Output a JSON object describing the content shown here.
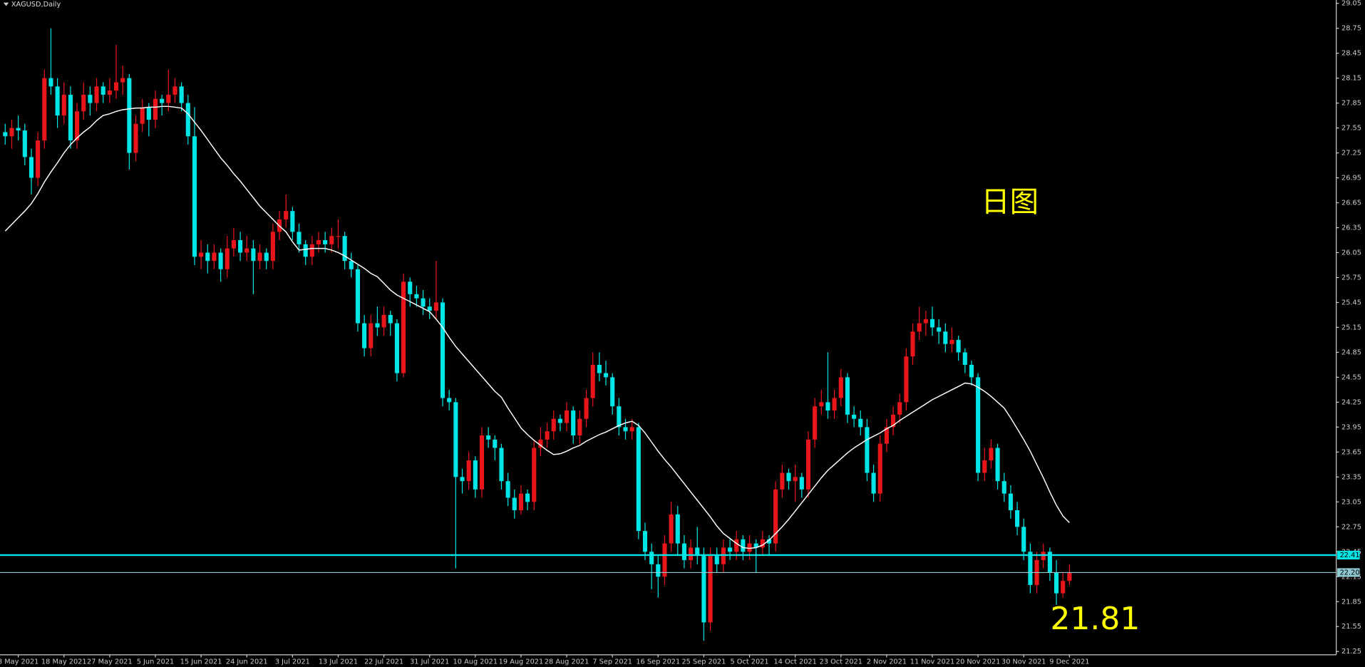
{
  "chart_data": {
    "type": "candlestick",
    "title": "XAGUSD,Daily",
    "up_color": "#e8161b",
    "down_color": "#00e5e5",
    "grid": false,
    "ylim": [
      21.21,
      29.09
    ],
    "yticks": [
      29.05,
      28.75,
      28.45,
      28.15,
      27.85,
      27.55,
      27.25,
      26.95,
      26.65,
      26.35,
      26.05,
      25.75,
      25.45,
      25.15,
      24.85,
      24.55,
      24.25,
      23.95,
      23.65,
      23.35,
      23.05,
      22.75,
      22.45,
      22.15,
      21.85,
      21.55,
      21.25
    ],
    "categories": [
      null,
      null,
      "8 May 2021",
      null,
      null,
      null,
      null,
      null,
      null,
      "18 May 2021",
      null,
      null,
      null,
      null,
      null,
      null,
      "27 May 2021",
      null,
      null,
      null,
      null,
      null,
      null,
      "5 Jun 2021",
      null,
      null,
      null,
      null,
      null,
      null,
      "15 Jun 2021",
      null,
      null,
      null,
      null,
      null,
      null,
      "24 Jun 2021",
      null,
      null,
      null,
      null,
      null,
      null,
      "3 Jul 2021",
      null,
      null,
      null,
      null,
      null,
      null,
      "13 Jul 2021",
      null,
      null,
      null,
      null,
      null,
      null,
      "22 Jul 2021",
      null,
      null,
      null,
      null,
      null,
      null,
      "31 Jul 2021",
      null,
      null,
      null,
      null,
      null,
      null,
      "10 Aug 2021",
      null,
      null,
      null,
      null,
      null,
      null,
      "19 Aug 2021",
      null,
      null,
      null,
      null,
      null,
      null,
      "28 Aug 2021",
      null,
      null,
      null,
      null,
      null,
      null,
      "7 Sep 2021",
      null,
      null,
      null,
      null,
      null,
      null,
      "16 Sep 2021",
      null,
      null,
      null,
      null,
      null,
      null,
      "25 Sep 2021",
      null,
      null,
      null,
      null,
      null,
      null,
      "5 Oct 2021",
      null,
      null,
      null,
      null,
      null,
      null,
      "14 Oct 2021",
      null,
      null,
      null,
      null,
      null,
      null,
      "23 Oct 2021",
      null,
      null,
      null,
      null,
      null,
      null,
      "2 Nov 2021",
      null,
      null,
      null,
      null,
      null,
      null,
      "11 Nov 2021",
      null,
      null,
      null,
      null,
      null,
      null,
      "20 Nov 2021",
      null,
      null,
      null,
      null,
      null,
      null,
      "30 Nov 2021",
      null,
      null,
      null,
      null,
      null,
      null,
      "9 Dec 2021"
    ],
    "ohlc": [
      [
        27.5,
        27.6,
        27.35,
        27.45
      ],
      [
        27.45,
        27.65,
        27.3,
        27.55
      ],
      [
        27.55,
        27.7,
        27.4,
        27.52
      ],
      [
        27.52,
        27.6,
        27.1,
        27.2
      ],
      [
        27.2,
        27.3,
        26.75,
        26.95
      ],
      [
        26.95,
        27.5,
        26.85,
        27.4
      ],
      [
        27.4,
        28.25,
        27.3,
        28.15
      ],
      [
        28.15,
        28.75,
        27.95,
        28.05
      ],
      [
        28.05,
        28.15,
        27.55,
        27.7
      ],
      [
        27.7,
        28.1,
        27.6,
        27.95
      ],
      [
        27.95,
        28.05,
        27.3,
        27.4
      ],
      [
        27.4,
        27.85,
        27.3,
        27.75
      ],
      [
        27.75,
        28.1,
        27.65,
        27.95
      ],
      [
        27.95,
        28.05,
        27.7,
        27.85
      ],
      [
        27.85,
        28.15,
        27.75,
        28.05
      ],
      [
        28.05,
        28.1,
        27.85,
        27.95
      ],
      [
        27.95,
        28.15,
        27.85,
        28.0
      ],
      [
        28.0,
        28.55,
        27.9,
        28.1
      ],
      [
        28.1,
        28.3,
        27.95,
        28.15
      ],
      [
        28.15,
        28.2,
        27.05,
        27.25
      ],
      [
        27.25,
        27.7,
        27.15,
        27.6
      ],
      [
        27.6,
        27.9,
        27.5,
        27.8
      ],
      [
        27.8,
        27.85,
        27.45,
        27.65
      ],
      [
        27.65,
        28.0,
        27.55,
        27.9
      ],
      [
        27.9,
        27.95,
        27.7,
        27.85
      ],
      [
        27.85,
        28.25,
        27.75,
        27.95
      ],
      [
        27.95,
        28.15,
        27.85,
        28.05
      ],
      [
        28.05,
        28.1,
        27.75,
        27.85
      ],
      [
        27.85,
        27.95,
        27.35,
        27.45
      ],
      [
        27.45,
        27.8,
        25.9,
        26.0
      ],
      [
        26.0,
        26.2,
        25.85,
        26.05
      ],
      [
        26.05,
        26.15,
        25.8,
        25.95
      ],
      [
        25.95,
        26.15,
        25.85,
        26.05
      ],
      [
        26.05,
        26.1,
        25.7,
        25.85
      ],
      [
        25.85,
        26.25,
        25.75,
        26.1
      ],
      [
        26.1,
        26.35,
        26.0,
        26.2
      ],
      [
        26.2,
        26.3,
        25.95,
        26.05
      ],
      [
        26.05,
        26.25,
        25.95,
        26.1
      ],
      [
        26.1,
        26.2,
        25.55,
        25.95
      ],
      [
        25.95,
        26.15,
        25.85,
        26.05
      ],
      [
        26.05,
        26.1,
        25.85,
        25.95
      ],
      [
        25.95,
        26.4,
        25.85,
        26.3
      ],
      [
        26.3,
        26.55,
        26.2,
        26.45
      ],
      [
        26.45,
        26.75,
        26.35,
        26.55
      ],
      [
        26.55,
        26.6,
        26.2,
        26.3
      ],
      [
        26.3,
        26.4,
        26.05,
        26.15
      ],
      [
        26.15,
        26.2,
        25.9,
        26.0
      ],
      [
        26.0,
        26.25,
        25.9,
        26.15
      ],
      [
        26.15,
        26.3,
        26.05,
        26.2
      ],
      [
        26.2,
        26.3,
        26.05,
        26.15
      ],
      [
        26.15,
        26.35,
        26.05,
        26.25
      ],
      [
        26.25,
        26.45,
        26.1,
        26.25
      ],
      [
        26.25,
        26.3,
        25.85,
        25.95
      ],
      [
        25.95,
        26.05,
        25.75,
        25.85
      ],
      [
        25.85,
        25.9,
        25.1,
        25.2
      ],
      [
        25.2,
        25.3,
        24.8,
        24.9
      ],
      [
        24.9,
        25.3,
        24.8,
        25.2
      ],
      [
        25.2,
        25.4,
        25.05,
        25.15
      ],
      [
        25.15,
        25.4,
        25.05,
        25.3
      ],
      [
        25.3,
        25.35,
        25.05,
        25.2
      ],
      [
        25.2,
        25.25,
        24.5,
        24.6
      ],
      [
        24.6,
        25.8,
        24.55,
        25.7
      ],
      [
        25.7,
        25.75,
        25.4,
        25.55
      ],
      [
        25.55,
        25.65,
        25.4,
        25.5
      ],
      [
        25.5,
        25.6,
        25.3,
        25.4
      ],
      [
        25.4,
        25.5,
        25.25,
        25.35
      ],
      [
        25.35,
        25.95,
        25.25,
        25.45
      ],
      [
        25.45,
        25.5,
        24.2,
        24.3
      ],
      [
        24.3,
        24.4,
        24.15,
        24.25
      ],
      [
        24.25,
        24.3,
        22.25,
        23.35
      ],
      [
        23.35,
        23.45,
        23.15,
        23.3
      ],
      [
        23.3,
        23.65,
        23.2,
        23.55
      ],
      [
        23.55,
        23.6,
        23.1,
        23.2
      ],
      [
        23.2,
        23.95,
        23.1,
        23.85
      ],
      [
        23.85,
        23.95,
        23.7,
        23.8
      ],
      [
        23.8,
        23.85,
        23.55,
        23.7
      ],
      [
        23.7,
        23.75,
        23.2,
        23.3
      ],
      [
        23.3,
        23.4,
        23.0,
        23.1
      ],
      [
        23.1,
        23.2,
        22.85,
        22.95
      ],
      [
        22.95,
        23.25,
        22.9,
        23.15
      ],
      [
        23.15,
        23.2,
        22.95,
        23.05
      ],
      [
        23.05,
        23.8,
        22.95,
        23.7
      ],
      [
        23.7,
        23.95,
        23.6,
        23.8
      ],
      [
        23.8,
        24.0,
        23.7,
        23.9
      ],
      [
        23.9,
        24.15,
        23.8,
        24.05
      ],
      [
        24.05,
        24.1,
        23.9,
        24.0
      ],
      [
        24.0,
        24.25,
        23.9,
        24.15
      ],
      [
        24.15,
        24.2,
        23.75,
        23.85
      ],
      [
        23.85,
        24.15,
        23.75,
        24.05
      ],
      [
        24.05,
        24.4,
        23.95,
        24.3
      ],
      [
        24.3,
        24.85,
        24.2,
        24.7
      ],
      [
        24.7,
        24.85,
        24.5,
        24.6
      ],
      [
        24.6,
        24.75,
        24.45,
        24.55
      ],
      [
        24.55,
        24.6,
        24.1,
        24.2
      ],
      [
        24.2,
        24.3,
        23.85,
        23.95
      ],
      [
        23.95,
        24.05,
        23.8,
        23.9
      ],
      [
        23.9,
        24.05,
        23.8,
        23.95
      ],
      [
        23.95,
        24.0,
        22.6,
        22.7
      ],
      [
        22.7,
        22.8,
        22.35,
        22.45
      ],
      [
        22.45,
        22.55,
        22.0,
        22.3
      ],
      [
        22.3,
        22.4,
        21.9,
        22.15
      ],
      [
        22.15,
        22.65,
        22.05,
        22.55
      ],
      [
        22.55,
        23.05,
        22.45,
        22.9
      ],
      [
        22.9,
        23.0,
        22.4,
        22.55
      ],
      [
        22.55,
        22.65,
        22.25,
        22.35
      ],
      [
        22.35,
        22.6,
        22.25,
        22.5
      ],
      [
        22.5,
        22.75,
        22.3,
        22.4
      ],
      [
        22.4,
        22.5,
        21.38,
        21.6
      ],
      [
        21.6,
        22.5,
        21.5,
        22.4
      ],
      [
        22.4,
        22.5,
        22.2,
        22.3
      ],
      [
        22.3,
        22.6,
        22.2,
        22.5
      ],
      [
        22.5,
        22.6,
        22.35,
        22.45
      ],
      [
        22.45,
        22.7,
        22.35,
        22.6
      ],
      [
        22.6,
        22.65,
        22.35,
        22.45
      ],
      [
        22.45,
        22.65,
        22.35,
        22.55
      ],
      [
        22.55,
        22.6,
        22.2,
        22.5
      ],
      [
        22.5,
        22.7,
        22.4,
        22.6
      ],
      [
        22.6,
        22.65,
        22.4,
        22.55
      ],
      [
        22.55,
        23.3,
        22.45,
        23.2
      ],
      [
        23.2,
        23.5,
        23.1,
        23.4
      ],
      [
        23.4,
        23.45,
        23.2,
        23.3
      ],
      [
        23.3,
        23.5,
        23.05,
        23.35
      ],
      [
        23.35,
        23.4,
        23.1,
        23.2
      ],
      [
        23.2,
        23.9,
        23.1,
        23.8
      ],
      [
        23.8,
        24.3,
        23.7,
        24.2
      ],
      [
        24.2,
        24.4,
        24.1,
        24.25
      ],
      [
        24.25,
        24.85,
        24.05,
        24.15
      ],
      [
        24.15,
        24.4,
        24.05,
        24.3
      ],
      [
        24.3,
        24.65,
        24.2,
        24.55
      ],
      [
        24.55,
        24.6,
        24.0,
        24.1
      ],
      [
        24.1,
        24.2,
        23.95,
        24.05
      ],
      [
        24.05,
        24.15,
        23.85,
        23.95
      ],
      [
        23.95,
        24.05,
        23.3,
        23.4
      ],
      [
        23.4,
        23.5,
        23.05,
        23.15
      ],
      [
        23.15,
        23.85,
        23.05,
        23.75
      ],
      [
        23.75,
        24.05,
        23.65,
        23.95
      ],
      [
        23.95,
        24.2,
        23.85,
        24.1
      ],
      [
        24.1,
        24.35,
        24.0,
        24.25
      ],
      [
        24.25,
        24.9,
        24.15,
        24.8
      ],
      [
        24.8,
        25.2,
        24.7,
        25.1
      ],
      [
        25.1,
        25.4,
        25.0,
        25.2
      ],
      [
        25.2,
        25.35,
        25.05,
        25.25
      ],
      [
        25.25,
        25.4,
        25.05,
        25.15
      ],
      [
        25.15,
        25.25,
        24.95,
        25.1
      ],
      [
        25.1,
        25.2,
        24.85,
        24.95
      ],
      [
        24.95,
        25.15,
        24.85,
        25.0
      ],
      [
        25.0,
        25.05,
        24.75,
        24.85
      ],
      [
        24.85,
        24.9,
        24.6,
        24.7
      ],
      [
        24.7,
        24.75,
        24.45,
        24.55
      ],
      [
        24.55,
        24.6,
        23.3,
        23.4
      ],
      [
        23.4,
        23.7,
        23.3,
        23.55
      ],
      [
        23.55,
        23.8,
        23.45,
        23.7
      ],
      [
        23.7,
        23.75,
        23.2,
        23.3
      ],
      [
        23.3,
        23.4,
        23.05,
        23.15
      ],
      [
        23.15,
        23.25,
        22.85,
        22.95
      ],
      [
        22.95,
        23.05,
        22.65,
        22.75
      ],
      [
        22.75,
        22.85,
        22.35,
        22.45
      ],
      [
        22.45,
        22.55,
        21.95,
        22.05
      ],
      [
        22.05,
        22.45,
        21.95,
        22.35
      ],
      [
        22.35,
        22.55,
        22.25,
        22.45
      ],
      [
        22.45,
        22.5,
        22.1,
        22.2
      ],
      [
        22.2,
        22.35,
        21.81,
        21.95
      ],
      [
        21.95,
        22.2,
        21.9,
        22.1
      ],
      [
        22.1,
        22.3,
        22.05,
        22.2
      ]
    ],
    "ma": {
      "color": "#ffffff",
      "values": [
        26.31,
        26.39,
        26.47,
        26.55,
        26.64,
        26.76,
        26.9,
        27.02,
        27.13,
        27.25,
        27.35,
        27.43,
        27.5,
        27.56,
        27.64,
        27.7,
        27.72,
        27.75,
        27.77,
        27.78,
        27.79,
        27.79,
        27.8,
        27.8,
        27.81,
        27.81,
        27.8,
        27.79,
        27.72,
        27.62,
        27.52,
        27.41,
        27.3,
        27.19,
        27.1,
        27.0,
        26.91,
        26.81,
        26.71,
        26.61,
        26.53,
        26.45,
        26.37,
        26.3,
        26.18,
        26.08,
        26.09,
        26.1,
        26.1,
        26.1,
        26.08,
        26.05,
        26.01,
        25.96,
        25.91,
        25.86,
        25.8,
        25.76,
        25.68,
        25.6,
        25.54,
        25.5,
        25.46,
        25.42,
        25.38,
        25.34,
        25.25,
        25.15,
        25.03,
        24.92,
        24.83,
        24.74,
        24.65,
        24.56,
        24.47,
        24.38,
        24.31,
        24.18,
        24.06,
        23.94,
        23.86,
        23.79,
        23.73,
        23.67,
        23.62,
        23.63,
        23.66,
        23.7,
        23.73,
        23.78,
        23.82,
        23.86,
        23.89,
        23.93,
        23.97,
        24.0,
        24.02,
        23.97,
        23.88,
        23.77,
        23.66,
        23.56,
        23.47,
        23.37,
        23.27,
        23.17,
        23.07,
        22.97,
        22.87,
        22.76,
        22.67,
        22.61,
        22.55,
        22.5,
        22.49,
        22.5,
        22.53,
        22.59,
        22.67,
        22.75,
        22.84,
        22.94,
        23.04,
        23.14,
        23.24,
        23.34,
        23.43,
        23.5,
        23.57,
        23.64,
        23.7,
        23.75,
        23.8,
        23.84,
        23.88,
        23.93,
        23.97,
        24.03,
        24.08,
        24.13,
        24.18,
        24.23,
        24.28,
        24.32,
        24.36,
        24.4,
        24.44,
        24.48,
        24.47,
        24.43,
        24.38,
        24.32,
        24.25,
        24.18,
        24.06,
        23.93,
        23.8,
        23.66,
        23.5,
        23.34,
        23.17,
        23.01,
        22.88,
        22.8
      ]
    },
    "hlines": [
      {
        "value": 22.41,
        "label": 22.41,
        "color": "#00e5e5",
        "width": 2
      },
      {
        "value": 22.2,
        "label": "22.20",
        "color": "#8fc8d0",
        "width": 1
      }
    ],
    "annotations": [
      {
        "text": "日图",
        "color": "#ffff00"
      },
      {
        "text": "21.81",
        "color": "#ffff00"
      }
    ]
  }
}
